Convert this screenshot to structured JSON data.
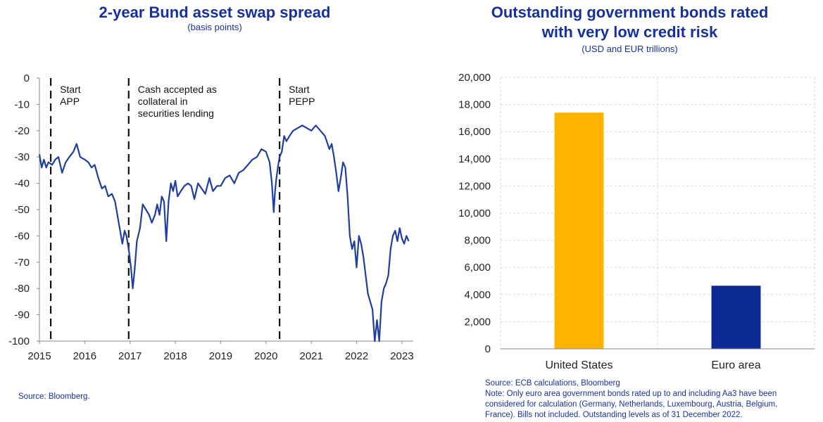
{
  "chart_data": [
    {
      "type": "line",
      "title": "2-year Bund asset swap spread",
      "subtitle": "(basis points)",
      "ylim": [
        -100,
        0
      ],
      "yticks": [
        0,
        -10,
        -20,
        -30,
        -40,
        -50,
        -60,
        -70,
        -80,
        -90,
        -100
      ],
      "xlim": [
        2015.0,
        2023.25
      ],
      "xticks": [
        "2015",
        "2016",
        "2017",
        "2018",
        "2019",
        "2020",
        "2021",
        "2022",
        "2023"
      ],
      "grid": false,
      "series": [
        {
          "color": "#1f3e9e",
          "x": [
            2015.0,
            2015.05,
            2015.1,
            2015.15,
            2015.2,
            2015.28,
            2015.35,
            2015.42,
            2015.5,
            2015.58,
            2015.66,
            2015.75,
            2015.82,
            2015.9,
            2016.0,
            2016.08,
            2016.15,
            2016.22,
            2016.3,
            2016.38,
            2016.45,
            2016.52,
            2016.6,
            2016.67,
            2016.72,
            2016.78,
            2016.83,
            2016.88,
            2016.92,
            2016.97,
            2017.02,
            2017.06,
            2017.1,
            2017.15,
            2017.22,
            2017.28,
            2017.35,
            2017.42,
            2017.48,
            2017.55,
            2017.6,
            2017.65,
            2017.7,
            2017.75,
            2017.8,
            2017.85,
            2017.9,
            2017.95,
            2018.0,
            2018.05,
            2018.12,
            2018.2,
            2018.28,
            2018.35,
            2018.42,
            2018.5,
            2018.58,
            2018.66,
            2018.75,
            2018.83,
            2018.92,
            2019.0,
            2019.1,
            2019.2,
            2019.3,
            2019.4,
            2019.5,
            2019.6,
            2019.7,
            2019.8,
            2019.9,
            2020.0,
            2020.08,
            2020.13,
            2020.17,
            2020.2,
            2020.23,
            2020.27,
            2020.3,
            2020.35,
            2020.4,
            2020.45,
            2020.52,
            2020.6,
            2020.7,
            2020.8,
            2020.9,
            2021.0,
            2021.1,
            2021.2,
            2021.3,
            2021.4,
            2021.45,
            2021.5,
            2021.55,
            2021.6,
            2021.65,
            2021.7,
            2021.75,
            2021.8,
            2021.85,
            2021.9,
            2021.95,
            2022.0,
            2022.05,
            2022.1,
            2022.15,
            2022.2,
            2022.25,
            2022.3,
            2022.35,
            2022.4,
            2022.45,
            2022.5,
            2022.55,
            2022.6,
            2022.65,
            2022.7,
            2022.75,
            2022.8,
            2022.85,
            2022.9,
            2022.95,
            2023.0,
            2023.05,
            2023.1,
            2023.15
          ],
          "y": [
            -29,
            -34,
            -31,
            -34,
            -32,
            -33,
            -31,
            -30,
            -36,
            -32,
            -30,
            -28,
            -25,
            -30,
            -31,
            -32,
            -34,
            -33,
            -38,
            -42,
            -41,
            -45,
            -44,
            -47,
            -52,
            -58,
            -63,
            -58,
            -60,
            -65,
            -72,
            -80,
            -73,
            -62,
            -57,
            -48,
            -50,
            -52,
            -55,
            -52,
            -48,
            -52,
            -45,
            -47,
            -62,
            -47,
            -40,
            -43,
            -39,
            -45,
            -43,
            -41,
            -40,
            -41,
            -46,
            -40,
            -42,
            -44,
            -38,
            -43,
            -41,
            -41,
            -38,
            -37,
            -40,
            -36,
            -35,
            -33,
            -31,
            -30,
            -27,
            -28,
            -32,
            -40,
            -51,
            -43,
            -38,
            -33,
            -30,
            -28,
            -22,
            -24,
            -22,
            -20,
            -19,
            -18,
            -19,
            -20,
            -18,
            -20,
            -22,
            -27,
            -25,
            -30,
            -36,
            -43,
            -38,
            -32,
            -34,
            -45,
            -60,
            -65,
            -62,
            -72,
            -60,
            -63,
            -68,
            -75,
            -82,
            -85,
            -88,
            -100,
            -92,
            -100,
            -85,
            -80,
            -78,
            -75,
            -65,
            -60,
            -58,
            -62,
            -57,
            -61,
            -63,
            -60,
            -62
          ]
        }
      ],
      "annotations": [
        {
          "x": 2015.25,
          "label": [
            "Start",
            "APP"
          ]
        },
        {
          "x": 2016.97,
          "label": [
            "Cash accepted as",
            "collateral  in",
            "securities lending"
          ]
        },
        {
          "x": 2020.3,
          "label": [
            "Start",
            "PEPP"
          ]
        }
      ],
      "source": "Source: Bloomberg."
    },
    {
      "type": "bar",
      "title": [
        "Outstanding government bonds rated",
        "with very low credit risk"
      ],
      "subtitle": "(USD and EUR trillions)",
      "categories": [
        "United States",
        "Euro area"
      ],
      "values": [
        17400,
        4650
      ],
      "colors": [
        "#fdb400",
        "#0c2a94"
      ],
      "ylim": [
        0,
        20000
      ],
      "yticks": [
        "0",
        "2,000",
        "4,000",
        "6,000",
        "8,000",
        "10,000",
        "12,000",
        "14,000",
        "16,000",
        "18,000",
        "20,000"
      ],
      "grid": true,
      "source": "Source: ECB calculations, Bloomberg",
      "note": [
        "Note:  Only euro area government bonds rated up to and including Aa3 have been",
        "considered for calculation (Germany, Netherlands, Luxembourg, Austria, Belgium,",
        "France). Bills not included. Outstanding levels as of 31 December 2022."
      ]
    }
  ]
}
